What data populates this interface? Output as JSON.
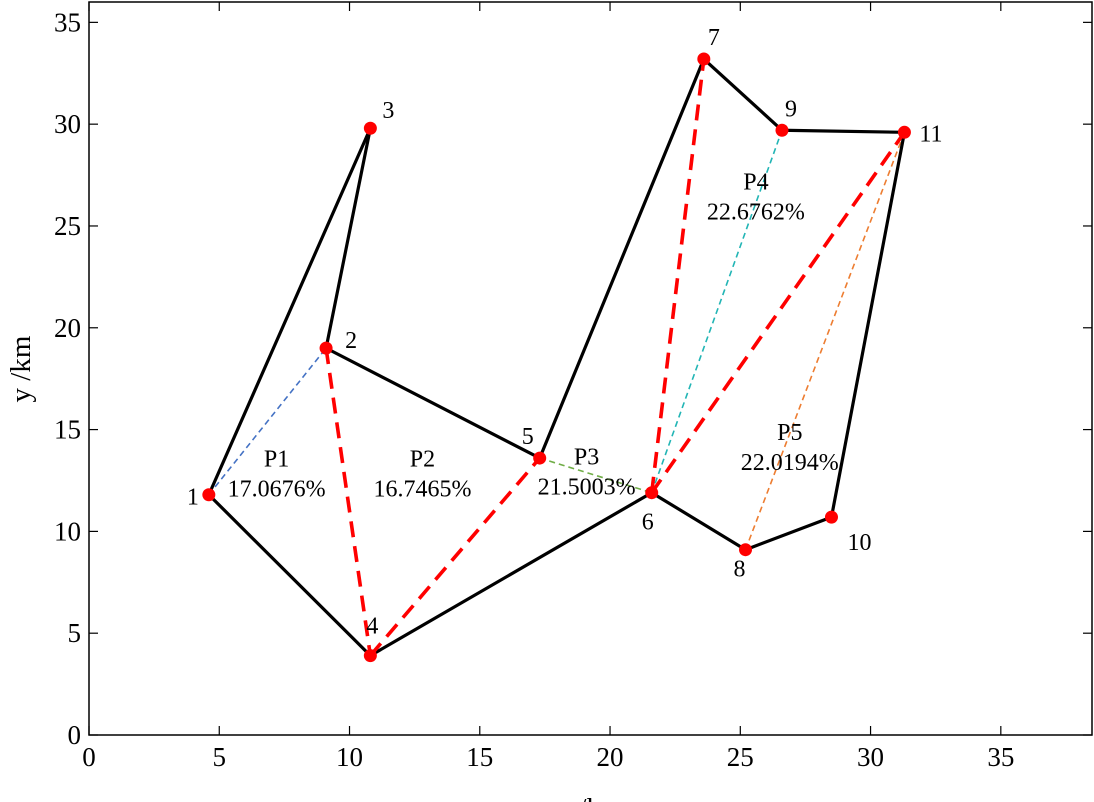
{
  "chart_data": {
    "type": "scatter",
    "xlabel": "x /km",
    "ylabel": "y /km",
    "xlim": [
      0,
      38.5
    ],
    "ylim": [
      0,
      36
    ],
    "x_ticks": [
      0,
      5,
      10,
      15,
      20,
      25,
      30,
      35
    ],
    "y_ticks": [
      0,
      5,
      10,
      15,
      20,
      25,
      30,
      35
    ],
    "grid": false,
    "nodes": [
      {
        "id": "1",
        "x": 4.6,
        "y": 11.8
      },
      {
        "id": "2",
        "x": 9.1,
        "y": 19.0
      },
      {
        "id": "3",
        "x": 10.8,
        "y": 29.8
      },
      {
        "id": "4",
        "x": 10.8,
        "y": 3.9
      },
      {
        "id": "5",
        "x": 17.3,
        "y": 13.6
      },
      {
        "id": "6",
        "x": 21.6,
        "y": 11.9
      },
      {
        "id": "7",
        "x": 23.6,
        "y": 33.2
      },
      {
        "id": "8",
        "x": 25.2,
        "y": 9.1
      },
      {
        "id": "9",
        "x": 26.6,
        "y": 29.7
      },
      {
        "id": "10",
        "x": 28.5,
        "y": 10.7
      },
      {
        "id": "11",
        "x": 31.3,
        "y": 29.6
      }
    ],
    "solid_edges": [
      [
        "1",
        "3"
      ],
      [
        "3",
        "2"
      ],
      [
        "2",
        "5"
      ],
      [
        "5",
        "7"
      ],
      [
        "7",
        "9"
      ],
      [
        "9",
        "11"
      ],
      [
        "11",
        "10"
      ],
      [
        "10",
        "8"
      ],
      [
        "8",
        "6"
      ],
      [
        "6",
        "4"
      ],
      [
        "4",
        "1"
      ]
    ],
    "red_dashed_edges": [
      [
        "2",
        "4"
      ],
      [
        "4",
        "5"
      ],
      [
        "6",
        "7"
      ],
      [
        "6",
        "11"
      ]
    ],
    "thin_dashed_edges": [
      {
        "from": "1",
        "to": "2",
        "color": "#4472c4"
      },
      {
        "from": "5",
        "to": "6",
        "color": "#70ad47"
      },
      {
        "from": "6",
        "to": "9",
        "color": "#22b5b5"
      },
      {
        "from": "8",
        "to": "11",
        "color": "#ed7d31"
      }
    ],
    "regions": [
      {
        "name": "P1",
        "value": "17.0676%",
        "x": 7.2,
        "y": 12.1
      },
      {
        "name": "P2",
        "value": "16.7465%",
        "x": 12.8,
        "y": 12.1
      },
      {
        "name": "P3",
        "value": "21.5003%",
        "x": 19.1,
        "y": 12.2
      },
      {
        "name": "P4",
        "value": "22.6762%",
        "x": 25.6,
        "y": 25.7
      },
      {
        "name": "P5",
        "value": "22.0194%",
        "x": 26.9,
        "y": 13.4
      }
    ],
    "colors": {
      "solid": "#000000",
      "red_dashed": "#ff0000",
      "node": "#ff0000"
    }
  }
}
